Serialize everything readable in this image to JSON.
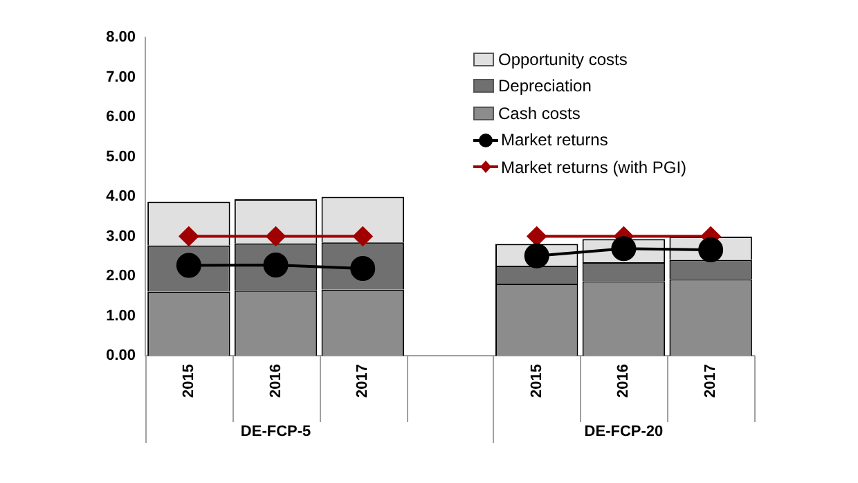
{
  "chart_data": {
    "type": "bar",
    "stacked": true,
    "categories": [
      "2015",
      "2016",
      "2017",
      null,
      "2015",
      "2016",
      "2017"
    ],
    "series": [
      {
        "name": "Cash costs",
        "color": "#8c8c8c",
        "values": [
          1.61,
          1.64,
          1.66,
          null,
          1.81,
          1.87,
          1.92
        ]
      },
      {
        "name": "Depreciation",
        "color": "#707070",
        "values": [
          1.16,
          1.18,
          1.19,
          null,
          0.45,
          0.48,
          0.49
        ]
      },
      {
        "name": "Opportunity costs",
        "color": "#e0e0e0",
        "values": [
          1.1,
          1.11,
          1.14,
          null,
          0.55,
          0.58,
          0.58
        ]
      },
      {
        "name": "Market returns",
        "type": "line",
        "color": "#000000",
        "marker": "circle",
        "values": [
          2.27,
          2.28,
          2.19,
          null,
          2.51,
          2.69,
          2.66
        ]
      },
      {
        "name": "Market returns (with PGI)",
        "type": "line",
        "color": "#a00000",
        "marker": "diamond",
        "values": [
          3.0,
          3.0,
          3.0,
          null,
          3.0,
          3.0,
          3.0
        ]
      }
    ],
    "ylim": [
      0,
      8
    ],
    "yticks": [
      {
        "value": 0,
        "label": "0.00"
      },
      {
        "value": 1,
        "label": "1.00"
      },
      {
        "value": 2,
        "label": "2.00"
      },
      {
        "value": 3,
        "label": "3.00"
      },
      {
        "value": 4,
        "label": "4.00"
      },
      {
        "value": 5,
        "label": "5.00"
      },
      {
        "value": 6,
        "label": "6.00"
      },
      {
        "value": 7,
        "label": "7.00"
      },
      {
        "value": 8,
        "label": "8.00"
      }
    ],
    "annotations": [
      "DE-FCP-5",
      "DE-FCP-20"
    ],
    "grid": false,
    "legend": "top right"
  }
}
